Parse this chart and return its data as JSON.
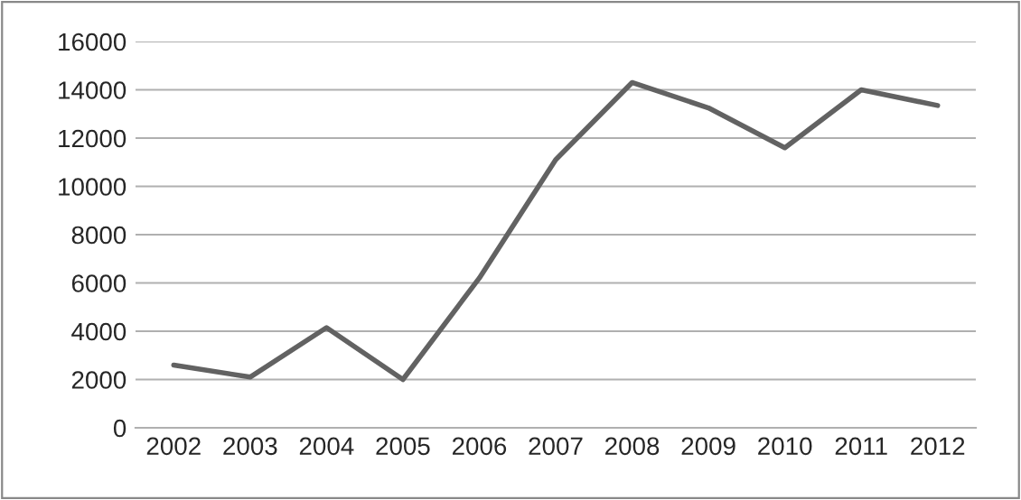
{
  "chart_data": {
    "type": "line",
    "categories": [
      "2002",
      "2003",
      "2004",
      "2005",
      "2006",
      "2007",
      "2008",
      "2009",
      "2010",
      "2011",
      "2012"
    ],
    "series": [
      {
        "color": "#626262",
        "values": [
          2600,
          2100,
          4150,
          2000,
          6200,
          11100,
          14300,
          13250,
          11600,
          14000,
          13350
        ]
      }
    ],
    "ylim": [
      0,
      16000
    ],
    "yticks": [
      0,
      2000,
      4000,
      6000,
      8000,
      10000,
      12000,
      14000,
      16000
    ],
    "grid": "y",
    "legend": false,
    "marker": "none",
    "line_style": "solid"
  }
}
